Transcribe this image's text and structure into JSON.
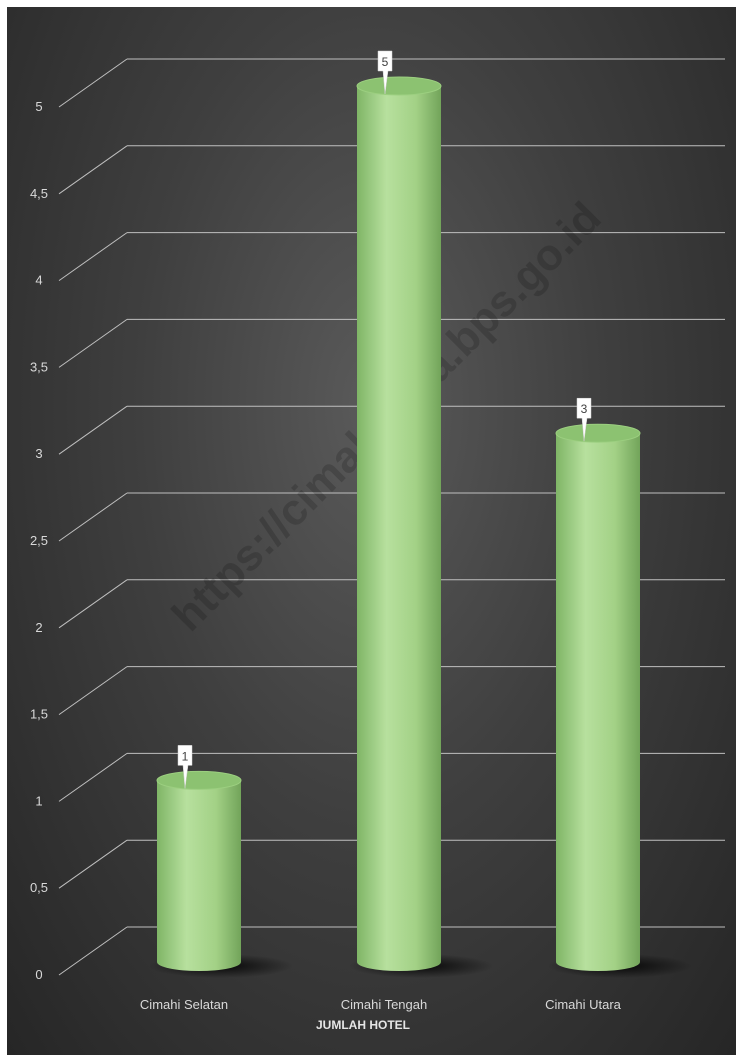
{
  "chart_data": {
    "type": "bar",
    "style": "3d-cylinder",
    "categories": [
      "Cimahi Selatan",
      "Cimahi Tengah",
      "Cimahi Utara"
    ],
    "values": [
      1,
      5,
      3
    ],
    "data_labels": [
      "1",
      "5",
      "3"
    ],
    "xlabel": "JUMLAH HOTEL",
    "ylabel": "",
    "ylim": [
      0,
      5
    ],
    "yticks": [
      "0",
      "0,5",
      "1",
      "1,5",
      "2",
      "2,5",
      "3",
      "3,5",
      "4",
      "4,5",
      "5"
    ],
    "grid": true,
    "legend": "none"
  },
  "watermark": "https://cimahikota.bps.go.id",
  "colors": {
    "background": "#3f3f3f",
    "bar": "#a6d48a",
    "bar_dark": "#6fa158",
    "bar_top": "#8cc271",
    "gridline": "#bfbfbf",
    "text": "#d9d9d9"
  }
}
